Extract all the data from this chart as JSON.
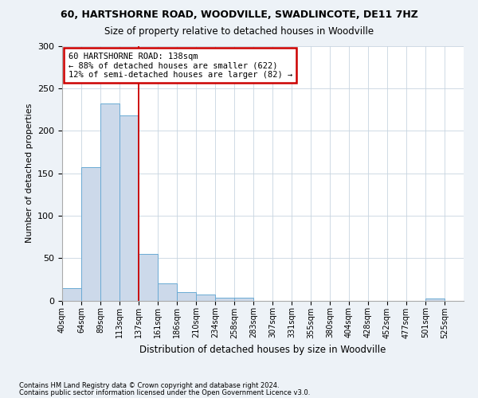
{
  "title1": "60, HARTSHORNE ROAD, WOODVILLE, SWADLINCOTE, DE11 7HZ",
  "title2": "Size of property relative to detached houses in Woodville",
  "xlabel": "Distribution of detached houses by size in Woodville",
  "ylabel": "Number of detached properties",
  "bar_color": "#ccd9ea",
  "bar_edge_color": "#6aaad4",
  "bins": [
    "40sqm",
    "64sqm",
    "89sqm",
    "113sqm",
    "137sqm",
    "161sqm",
    "186sqm",
    "210sqm",
    "234sqm",
    "258sqm",
    "283sqm",
    "307sqm",
    "331sqm",
    "355sqm",
    "380sqm",
    "404sqm",
    "428sqm",
    "452sqm",
    "477sqm",
    "501sqm",
    "525sqm"
  ],
  "values": [
    15,
    157,
    232,
    218,
    55,
    20,
    10,
    7,
    3,
    3,
    0,
    0,
    0,
    0,
    0,
    0,
    0,
    0,
    0,
    2,
    0
  ],
  "vline_index": 4,
  "annotation_text": "60 HARTSHORNE ROAD: 138sqm\n← 88% of detached houses are smaller (622)\n12% of semi-detached houses are larger (82) →",
  "ylim": [
    0,
    300
  ],
  "yticks": [
    0,
    50,
    100,
    150,
    200,
    250,
    300
  ],
  "footnote1": "Contains HM Land Registry data © Crown copyright and database right 2024.",
  "footnote2": "Contains public sector information licensed under the Open Government Licence v3.0.",
  "fig_bg_color": "#edf2f7",
  "plot_bg_color": "#ffffff",
  "grid_color": "#c8d4e0",
  "vline_color": "#cc0000",
  "box_edge_color": "#cc0000"
}
